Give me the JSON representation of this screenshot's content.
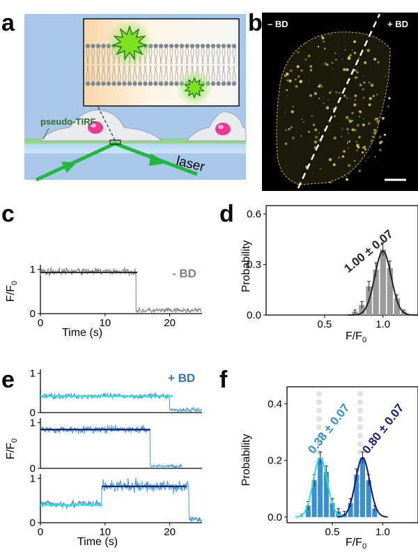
{
  "panel_labels": {
    "a": "a",
    "b": "b",
    "c": "c",
    "d": "d",
    "e": "e",
    "f": "f"
  },
  "panel_a": {
    "tirf_label": "pseudo-TIRF",
    "laser_label": "laser"
  },
  "panel_b": {
    "left_label": "– BD",
    "right_label": "+ BD"
  },
  "colors": {
    "trace_gray": "#808080",
    "fit_black": "#222222",
    "trace_blue": "#3b9ad4",
    "fit_cyan": "#27e0e0",
    "fit_navy": "#16167a",
    "bar_gray": "#9a9a9a",
    "bar_blue": "#3a8fcf",
    "ann_blue": "#2f8fcf",
    "ann_navy": "#1a1a7a",
    "bd_blue": "#2f74c0",
    "microscopy_yellow": "#e6d84a"
  },
  "chart_data": [
    {
      "id": "c",
      "type": "line",
      "title": "",
      "xlabel": "Time (s)",
      "ylabel": "F/F0",
      "ylabel_main": "F/F",
      "ylabel_sub": "0",
      "annotation": "- BD",
      "xlim": [
        0,
        25
      ],
      "ylim": [
        0,
        1.1
      ],
      "xticks": [
        "0",
        "10",
        "20"
      ],
      "yticks": [
        "0",
        "1"
      ],
      "xtick_values": [
        0,
        10,
        20
      ],
      "ytick_values": [
        0,
        1
      ],
      "series": [
        {
          "name": "trace",
          "steps": [
            [
              0,
              14.8,
              0.95,
              0.07
            ],
            [
              14.8,
              25,
              0.07,
              0.05
            ]
          ]
        },
        {
          "name": "fit",
          "segments": [
            [
              0,
              14.8,
              0.93
            ],
            [
              14.8,
              15.0,
              0.93
            ]
          ]
        }
      ]
    },
    {
      "id": "d",
      "type": "bar",
      "title": "",
      "xlabel": "F/F0",
      "ylabel": "Probability",
      "xlabel_main": "F/F",
      "xlabel_sub": "0",
      "annotation": "1.00 ± 0.07",
      "xlim": [
        0,
        1.3
      ],
      "ylim": [
        0,
        0.65
      ],
      "xticks": [
        "0.5",
        "1.0"
      ],
      "yticks": [
        "0.0",
        "0.3",
        "0.6"
      ],
      "xtick_values": [
        0.5,
        1.0
      ],
      "ytick_values": [
        0.0,
        0.3,
        0.6
      ],
      "bin_width": 0.06,
      "bins": [
        0.76,
        0.82,
        0.88,
        0.94,
        1.0,
        1.06,
        1.12,
        1.18
      ],
      "values": [
        0.02,
        0.06,
        0.17,
        0.27,
        0.39,
        0.28,
        0.1,
        0.02
      ],
      "errors": [
        0.01,
        0.02,
        0.03,
        0.04,
        0.04,
        0.04,
        0.02,
        0.01
      ],
      "fit": {
        "mean": 1.0,
        "sd": 0.07,
        "amp": 0.38
      }
    },
    {
      "id": "e",
      "type": "line",
      "title": "",
      "xlabel": "Time (s)",
      "ylabel": "F/F0",
      "ylabel_main": "F/F",
      "ylabel_sub": "0",
      "annotation": "+ BD",
      "xlim": [
        0,
        25
      ],
      "ylim": [
        0,
        1.1
      ],
      "xticks": [
        "0",
        "10",
        "20"
      ],
      "yticks": [
        "0",
        "1"
      ],
      "xtick_values": [
        0,
        10,
        20
      ],
      "ytick_values": [
        0,
        1
      ],
      "subplots": [
        {
          "steps": [
            [
              0,
              20,
              0.42,
              0.06
            ],
            [
              20,
              25,
              0.07,
              0.05
            ]
          ],
          "fit": [
            [
              0,
              20,
              0.42,
              "cyan"
            ],
            [
              20,
              20.5,
              0.42,
              "cyan"
            ]
          ]
        },
        {
          "steps": [
            [
              0,
              17,
              0.85,
              0.07
            ],
            [
              17,
              22,
              0.05,
              0.03
            ]
          ],
          "fit": [
            [
              0,
              17,
              0.85,
              "navy"
            ]
          ]
        },
        {
          "steps": [
            [
              0,
              9.5,
              0.42,
              0.08
            ],
            [
              9.5,
              23,
              0.82,
              0.12
            ],
            [
              23,
              25,
              0.08,
              0.05
            ]
          ],
          "fit": [
            [
              0,
              9.5,
              0.4,
              "cyan"
            ],
            [
              9.5,
              22.5,
              0.82,
              "navy"
            ]
          ]
        }
      ]
    },
    {
      "id": "f",
      "type": "bar",
      "title": "",
      "xlabel": "F/F0",
      "ylabel": "Probability",
      "xlabel_main": "F/F",
      "xlabel_sub": "0",
      "annotations": [
        "0.38 ± 0.07",
        "0.80 ± 0.07"
      ],
      "xlim": [
        0.05,
        1.35
      ],
      "ylim": [
        -0.02,
        0.46
      ],
      "xticks": [
        "0.5",
        "1.0"
      ],
      "yticks": [
        "0.0",
        "0.2",
        "0.4"
      ],
      "xtick_values": [
        0.5,
        1.0
      ],
      "ytick_values": [
        0.0,
        0.2,
        0.4
      ],
      "bin_width": 0.06,
      "bins": [
        0.2,
        0.26,
        0.32,
        0.38,
        0.44,
        0.5,
        0.56,
        0.62,
        0.68,
        0.74,
        0.8,
        0.86,
        0.92
      ],
      "values": [
        0.0,
        0.04,
        0.13,
        0.21,
        0.16,
        0.05,
        0.02,
        0.01,
        0.05,
        0.15,
        0.21,
        0.13,
        0.03
      ],
      "errors": [
        0.01,
        0.015,
        0.02,
        0.02,
        0.02,
        0.015,
        0.01,
        0.01,
        0.015,
        0.02,
        0.02,
        0.02,
        0.01
      ],
      "fits": [
        {
          "mean": 0.38,
          "sd": 0.07,
          "amp": 0.21,
          "color": "cyan"
        },
        {
          "mean": 0.8,
          "sd": 0.07,
          "amp": 0.21,
          "color": "navy"
        }
      ]
    }
  ]
}
